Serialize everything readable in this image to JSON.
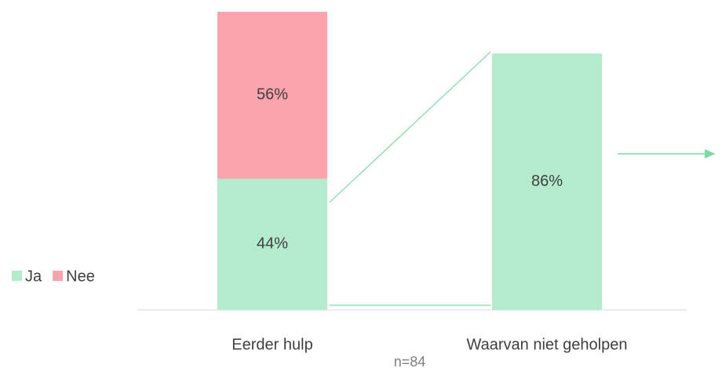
{
  "chart_data": {
    "type": "stacked-bar",
    "categories": [
      "Eerder hulp",
      "Waarvan niet geholpen"
    ],
    "series": [
      {
        "name": "Ja",
        "color": "#b3ebcc",
        "values": [
          44,
          86
        ],
        "value_labels": [
          "44%",
          "86%"
        ]
      },
      {
        "name": "Nee",
        "color": "#f9a3ac",
        "values": [
          56,
          null
        ],
        "value_labels": [
          "56%",
          null
        ]
      }
    ],
    "ylim": [
      0,
      100
    ],
    "annotation": "n=84",
    "legend": "left"
  }
}
